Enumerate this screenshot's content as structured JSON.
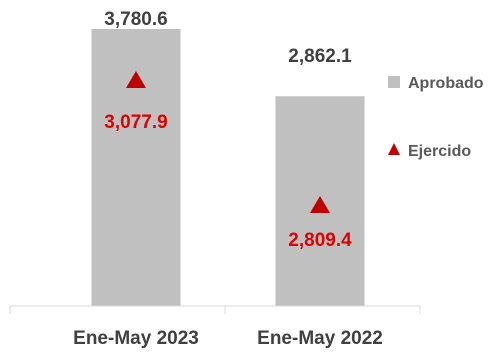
{
  "chart_data": {
    "type": "bar",
    "categories": [
      "Ene-May 2023",
      "Ene-May 2022"
    ],
    "series": [
      {
        "name": "Aprobado",
        "marker": "bar",
        "color": "#c0c0c0",
        "values": [
          3780.6,
          2862.1
        ],
        "labels": [
          "3,780.6",
          "2,862.1"
        ]
      },
      {
        "name": "Ejercido",
        "marker": "triangle",
        "color": "#c00000",
        "values": [
          3077.9,
          2809.4
        ],
        "labels": [
          "3,077.9",
          "2,809.4"
        ]
      }
    ],
    "legend_position": "right",
    "grid": false
  }
}
